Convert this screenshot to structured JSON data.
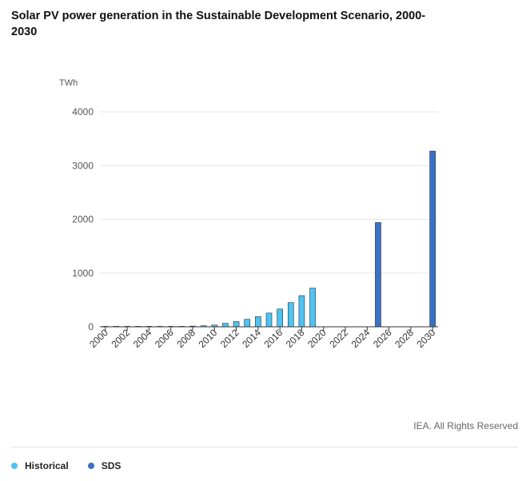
{
  "title": "Solar PV power generation in the Sustainable Development Scenario, 2000-2030",
  "credit": "IEA. All Rights Reserved",
  "colors": {
    "historical": "#4fc3f0",
    "sds": "#3a71c4",
    "grid": "#e6e6e6",
    "axis": "#333333"
  },
  "legend": [
    {
      "name": "Historical",
      "color": "#4fc3f0"
    },
    {
      "name": "SDS",
      "color": "#3a71c4"
    }
  ],
  "chart_data": {
    "type": "bar",
    "ylabel": "TWh",
    "xlabel": "",
    "ylim": [
      0,
      4000
    ],
    "yticks": [
      0,
      1000,
      2000,
      3000,
      4000
    ],
    "xlim": [
      2000,
      2030
    ],
    "xticks": [
      2000,
      2002,
      2004,
      2006,
      2008,
      2010,
      2012,
      2014,
      2016,
      2018,
      2020,
      2022,
      2024,
      2026,
      2028,
      2030
    ],
    "grid": true,
    "legend_position": "bottom-left",
    "series": [
      {
        "name": "Historical",
        "color": "#4fc3f0",
        "points": [
          {
            "x": 2000,
            "y": 1
          },
          {
            "x": 2001,
            "y": 1
          },
          {
            "x": 2002,
            "y": 2
          },
          {
            "x": 2003,
            "y": 2
          },
          {
            "x": 2004,
            "y": 3
          },
          {
            "x": 2005,
            "y": 4
          },
          {
            "x": 2006,
            "y": 5
          },
          {
            "x": 2007,
            "y": 8
          },
          {
            "x": 2008,
            "y": 12
          },
          {
            "x": 2009,
            "y": 20
          },
          {
            "x": 2010,
            "y": 32
          },
          {
            "x": 2011,
            "y": 64
          },
          {
            "x": 2012,
            "y": 97
          },
          {
            "x": 2013,
            "y": 138
          },
          {
            "x": 2014,
            "y": 190
          },
          {
            "x": 2015,
            "y": 255
          },
          {
            "x": 2016,
            "y": 330
          },
          {
            "x": 2017,
            "y": 450
          },
          {
            "x": 2018,
            "y": 580
          },
          {
            "x": 2019,
            "y": 720
          }
        ]
      },
      {
        "name": "SDS",
        "color": "#3a71c4",
        "points": [
          {
            "x": 2025,
            "y": 1940
          },
          {
            "x": 2030,
            "y": 3270
          }
        ]
      }
    ]
  }
}
